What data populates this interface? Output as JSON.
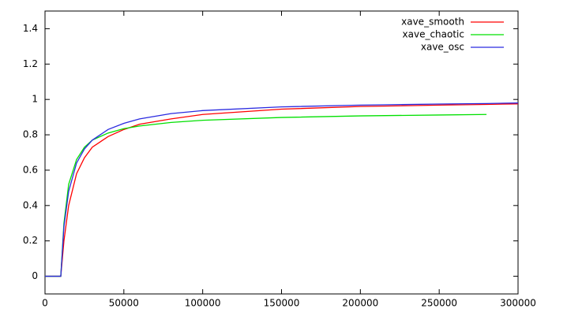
{
  "chart_data": {
    "type": "line",
    "x": [
      0,
      10000,
      12000,
      15000,
      20000,
      25000,
      30000,
      40000,
      50000,
      60000,
      80000,
      100000,
      150000,
      200000,
      250000,
      280000,
      300000
    ],
    "series": [
      {
        "name": "xave_smooth",
        "color": "#ff0000",
        "values": [
          0,
          0,
          0.2,
          0.4,
          0.58,
          0.67,
          0.73,
          0.79,
          0.83,
          0.86,
          0.89,
          0.915,
          0.945,
          0.96,
          0.968,
          0.972,
          0.975
        ]
      },
      {
        "name": "xave_chaotic",
        "color": "#00e000",
        "values": [
          0,
          0,
          0.3,
          0.52,
          0.66,
          0.73,
          0.77,
          0.81,
          0.835,
          0.85,
          0.87,
          0.882,
          0.898,
          0.907,
          0.912,
          0.915,
          null
        ]
      },
      {
        "name": "xave_osc",
        "color": "#2a2ae0",
        "values": [
          0,
          0,
          0.28,
          0.48,
          0.64,
          0.72,
          0.77,
          0.83,
          0.865,
          0.89,
          0.92,
          0.937,
          0.958,
          0.968,
          0.974,
          0.977,
          0.98
        ]
      }
    ],
    "xlim": [
      0,
      300000
    ],
    "xticks": [
      0,
      50000,
      100000,
      150000,
      200000,
      250000,
      300000
    ],
    "ylim": [
      -0.1,
      1.5
    ],
    "yticks": [
      0,
      0.2,
      0.4,
      0.6,
      0.8,
      1,
      1.2,
      1.4
    ],
    "legend": "top-right"
  }
}
